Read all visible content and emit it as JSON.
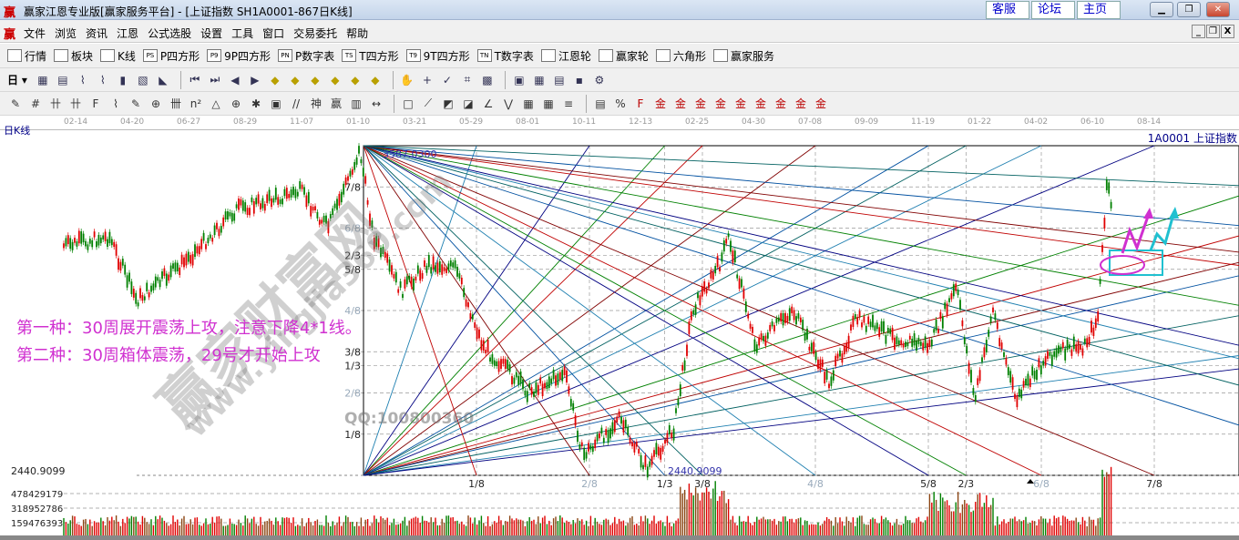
{
  "window": {
    "title": "赢家江恩专业版[赢家服务平台] - [上证指数  SH1A0001-867日K线]",
    "logo": "赢",
    "links": [
      "客服",
      "论坛",
      "主页"
    ]
  },
  "menu": {
    "logo": "赢",
    "items": [
      "文件",
      "浏览",
      "资讯",
      "江恩",
      "公式选股",
      "设置",
      "工具",
      "窗口",
      "交易委托",
      "帮助"
    ]
  },
  "toolbar1": [
    {
      "label": "行情",
      "icon": "grid-icon"
    },
    {
      "label": "板块",
      "icon": "blocks-icon"
    },
    {
      "label": "K线",
      "icon": "candles-icon"
    },
    {
      "label": "P四方形",
      "icon": "PS"
    },
    {
      "label": "9P四方形",
      "icon": "P9"
    },
    {
      "label": "P数字表",
      "icon": "PN"
    },
    {
      "label": "T四方形",
      "icon": "TS"
    },
    {
      "label": "9T四方形",
      "icon": "T9"
    },
    {
      "label": "T数字表",
      "icon": "TN"
    },
    {
      "label": "江恩轮",
      "icon": "target-icon"
    },
    {
      "label": "赢家轮",
      "icon": "wheel-icon"
    },
    {
      "label": "六角形",
      "icon": "hexagon-icon"
    },
    {
      "label": "赢家服务",
      "icon": "dollar-icon"
    }
  ],
  "toolbar2": {
    "period": "日",
    "icons": [
      "chart-type",
      "notes",
      "wave3",
      "wave9",
      "bar-select",
      "gann-box",
      "color-fill",
      "first",
      "last",
      "left",
      "right",
      "arrow-left",
      "arrow-right",
      "arrow-lr",
      "shrink-h",
      "shrink-v",
      "expand-v",
      "hand",
      "crosshair",
      "draw-wave",
      "section",
      "calc-grid",
      "calendar",
      "calculator",
      "report",
      "save",
      "network"
    ]
  },
  "toolbar3": {
    "icons": [
      "pen",
      "hash",
      "gold1",
      "gold2",
      "F-grid",
      "spiral",
      "pen2",
      "circle-grid",
      "bars",
      "n2",
      "triangle",
      "target",
      "web",
      "square-web",
      "lines",
      "shen",
      "ying",
      "grid-ruler",
      "measure",
      "box",
      "fan",
      "fan-box",
      "fan-box2",
      "angle",
      "zigzag",
      "grid",
      "grid2",
      "parallel",
      "stats",
      "percent",
      "fib",
      "gold-a",
      "gold-b",
      "gold-c",
      "gold-d",
      "gold-e",
      "gold-f",
      "gold-g",
      "gold-h",
      "gold-i"
    ]
  },
  "chart": {
    "period_label": "日K线",
    "symbol": "1A0001  上证指数",
    "dates": [
      "02-14",
      "04-20",
      "06-27",
      "08-29",
      "11-07",
      "01-10",
      "03-21",
      "05-29",
      "08-01",
      "10-11",
      "12-13",
      "02-25",
      "04-30",
      "07-08",
      "09-09",
      "11-19",
      "01-22",
      "04-02",
      "06-10",
      "08-14"
    ],
    "high_label": "3587.0300",
    "low_label": "2440.9099",
    "price_axis_low": "2440.9099",
    "price_fractions": [
      "7/8",
      "6/8",
      "2/3",
      "5/8",
      "4/8",
      "3/8",
      "1/3",
      "2/8",
      "1/8"
    ],
    "time_fractions": [
      "1/8",
      "2/8",
      "1/3",
      "3/8",
      "4/8",
      "5/8",
      "2/3",
      "6/8",
      "7/8"
    ],
    "volume_ticks": [
      "478429179",
      "318952786",
      "159476393"
    ],
    "colors": {
      "up": "#e00000",
      "down": "#008000",
      "annotation": "#d030d0",
      "cyan": "#20c0d0"
    }
  },
  "notes": [
    "第一种：30周展开震荡上攻，注意下降4*1线。",
    "第二种：30周箱体震荡，29号才开始上攻"
  ],
  "watermark": {
    "site": "赢家财富网",
    "url": "www.yingjia360.com",
    "qq": "QQ:100800360"
  }
}
